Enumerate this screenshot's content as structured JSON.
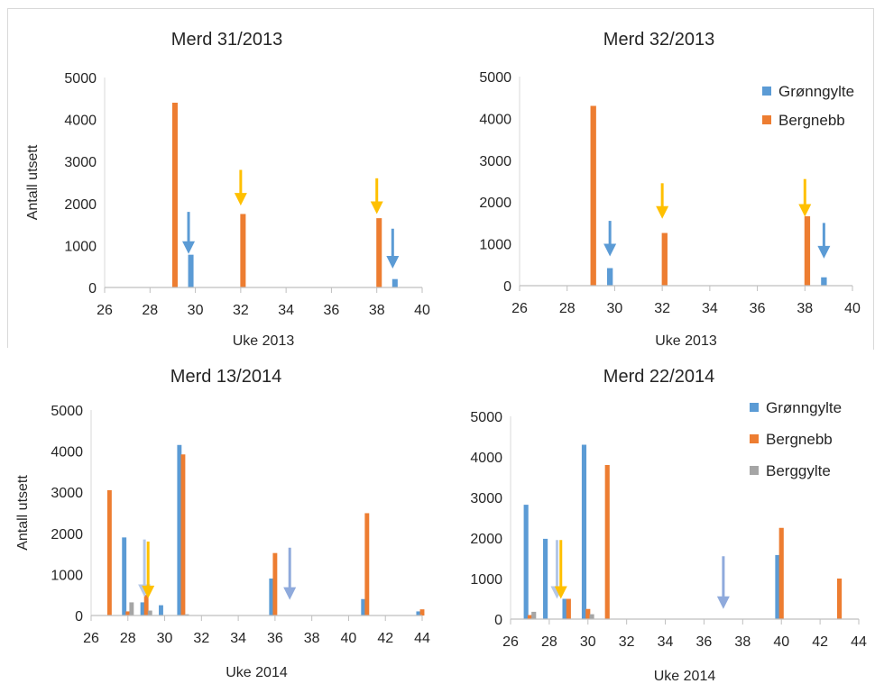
{
  "chart_data": [
    {
      "type": "bar",
      "title": "Merd 31/2013",
      "xlabel": "Uke 2013",
      "ylabel": "Antall utsett",
      "xlim": [
        26,
        40
      ],
      "xticks": [
        "26",
        "28",
        "30",
        "32",
        "34",
        "36",
        "38",
        "40"
      ],
      "ylim": [
        0,
        5000
      ],
      "yticks": [
        "0",
        "1000",
        "2000",
        "3000",
        "4000",
        "5000"
      ],
      "legend": null,
      "series": [
        {
          "name": "Grønngylte",
          "color": "#5b9bd5",
          "points": [
            [
              29.8,
              780
            ],
            [
              38.8,
              200
            ]
          ]
        },
        {
          "name": "Bergnebb",
          "color": "#ed7d31",
          "points": [
            [
              29.1,
              4400
            ],
            [
              32.1,
              1750
            ],
            [
              38.1,
              1650
            ]
          ]
        }
      ],
      "arrows": [
        {
          "x": 29.7,
          "y_top": 1800,
          "y_tip": 800,
          "color": "#5b9bd5"
        },
        {
          "x": 32.0,
          "y_top": 2800,
          "y_tip": 1950,
          "color": "#ffc000"
        },
        {
          "x": 38.0,
          "y_top": 2600,
          "y_tip": 1750,
          "color": "#ffc000"
        },
        {
          "x": 38.7,
          "y_top": 1400,
          "y_tip": 450,
          "color": "#5b9bd5"
        }
      ]
    },
    {
      "type": "bar",
      "title": "Merd 32/2013",
      "xlabel": "Uke 2013",
      "ylabel": "",
      "xlim": [
        26,
        40
      ],
      "xticks": [
        "26",
        "28",
        "30",
        "32",
        "34",
        "36",
        "38",
        "40"
      ],
      "ylim": [
        0,
        5000
      ],
      "yticks": [
        "0",
        "1000",
        "2000",
        "3000",
        "4000",
        "5000"
      ],
      "legend": [
        "Grønngylte",
        "Bergnebb"
      ],
      "series": [
        {
          "name": "Grønngylte",
          "color": "#5b9bd5",
          "points": [
            [
              29.8,
              420
            ],
            [
              38.8,
              200
            ]
          ]
        },
        {
          "name": "Bergnebb",
          "color": "#ed7d31",
          "points": [
            [
              29.1,
              4300
            ],
            [
              32.1,
              1260
            ],
            [
              38.1,
              1660
            ]
          ]
        }
      ],
      "arrows": [
        {
          "x": 29.8,
          "y_top": 1550,
          "y_tip": 700,
          "color": "#5b9bd5"
        },
        {
          "x": 32.0,
          "y_top": 2450,
          "y_tip": 1600,
          "color": "#ffc000"
        },
        {
          "x": 38.0,
          "y_top": 2550,
          "y_tip": 1650,
          "color": "#ffc000"
        },
        {
          "x": 38.8,
          "y_top": 1500,
          "y_tip": 650,
          "color": "#5b9bd5"
        }
      ]
    },
    {
      "type": "bar",
      "title": "Merd 13/2014",
      "xlabel": "Uke 2014",
      "ylabel": "Antall utsett",
      "xlim": [
        26,
        44
      ],
      "xticks": [
        "26",
        "28",
        "30",
        "32",
        "34",
        "36",
        "38",
        "40",
        "42",
        "44"
      ],
      "ylim": [
        0,
        5000
      ],
      "yticks": [
        "0",
        "1000",
        "2000",
        "3000",
        "4000",
        "5000"
      ],
      "legend": null,
      "series": [
        {
          "name": "Grønngylte",
          "color": "#5b9bd5",
          "points": [
            [
              27.8,
              1900
            ],
            [
              28.8,
              320
            ],
            [
              29.8,
              250
            ],
            [
              30.8,
              4150
            ],
            [
              35.8,
              900
            ],
            [
              40.8,
              400
            ],
            [
              43.8,
              100
            ]
          ]
        },
        {
          "name": "Bergnebb",
          "color": "#ed7d31",
          "points": [
            [
              27.0,
              3050
            ],
            [
              28.0,
              100
            ],
            [
              29.0,
              500
            ],
            [
              31.0,
              3920
            ],
            [
              36.0,
              1520
            ],
            [
              41.0,
              2490
            ],
            [
              44.0,
              150
            ]
          ]
        },
        {
          "name": "Berggylte",
          "color": "#a5a5a5",
          "points": [
            [
              28.2,
              320
            ],
            [
              29.2,
              120
            ],
            [
              31.2,
              30
            ]
          ]
        }
      ],
      "arrows": [
        {
          "x": 28.9,
          "y_top": 1850,
          "y_tip": 450,
          "color": "#b4c7e7"
        },
        {
          "x": 29.1,
          "y_top": 1800,
          "y_tip": 420,
          "color": "#ffc000"
        },
        {
          "x": 36.8,
          "y_top": 1650,
          "y_tip": 380,
          "color": "#8faadc"
        }
      ]
    },
    {
      "type": "bar",
      "title": "Merd 22/2014",
      "xlabel": "Uke 2014",
      "ylabel": "",
      "xlim": [
        26,
        44
      ],
      "xticks": [
        "26",
        "28",
        "30",
        "32",
        "34",
        "36",
        "38",
        "40",
        "42",
        "44"
      ],
      "ylim": [
        0,
        5000
      ],
      "yticks": [
        "0",
        "1000",
        "2000",
        "3000",
        "4000",
        "5000"
      ],
      "legend": [
        "Grønngylte",
        "Bergnebb",
        "Berggylte"
      ],
      "series": [
        {
          "name": "Grønngylte",
          "color": "#5b9bd5",
          "points": [
            [
              26.8,
              2820
            ],
            [
              27.8,
              1980
            ],
            [
              28.8,
              500
            ],
            [
              29.8,
              4300
            ],
            [
              39.8,
              1580
            ]
          ]
        },
        {
          "name": "Bergnebb",
          "color": "#ed7d31",
          "points": [
            [
              27.0,
              100
            ],
            [
              29.0,
              500
            ],
            [
              30.0,
              250
            ],
            [
              31.0,
              3800
            ],
            [
              40.0,
              2250
            ],
            [
              43.0,
              1000
            ]
          ]
        },
        {
          "name": "Berggylte",
          "color": "#a5a5a5",
          "points": [
            [
              27.2,
              180
            ],
            [
              30.2,
              120
            ]
          ]
        }
      ],
      "arrows": [
        {
          "x": 28.4,
          "y_top": 1950,
          "y_tip": 500,
          "color": "#b4c7e7"
        },
        {
          "x": 28.6,
          "y_top": 1950,
          "y_tip": 500,
          "color": "#ffc000"
        },
        {
          "x": 37.0,
          "y_top": 1550,
          "y_tip": 250,
          "color": "#8faadc"
        }
      ]
    }
  ]
}
